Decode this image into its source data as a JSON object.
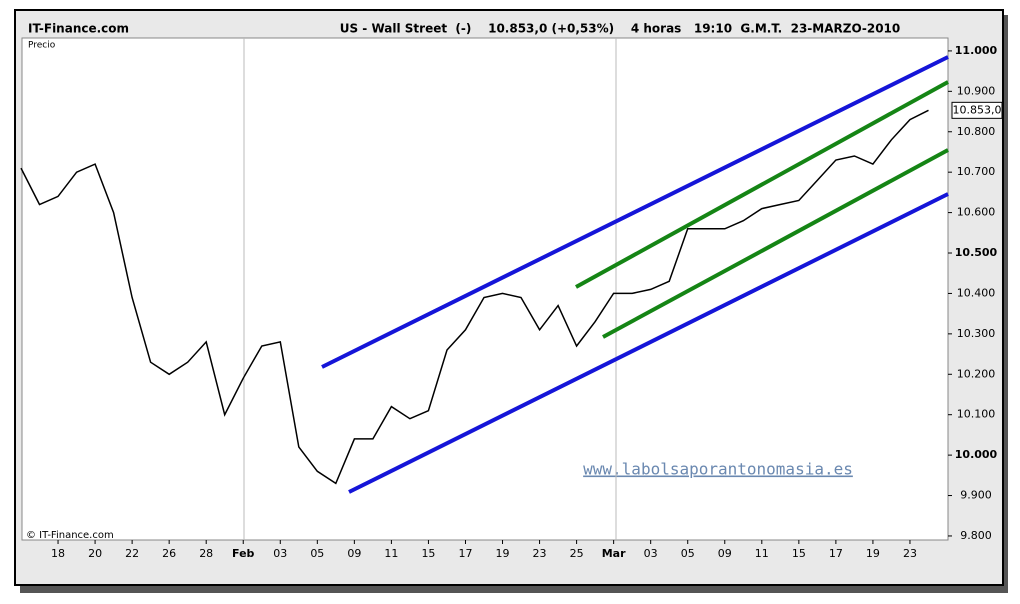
{
  "chart_data": {
    "type": "line",
    "site": "IT-Finance.com",
    "title": "US - Wall Street  (-)    10.853,0 (+0,53%)    4 horas   19:10  G.M.T.  23-MARZO-2010",
    "y_label": "Precio",
    "copyright": "© IT-Finance.com",
    "watermark": "www.labolsaporantonomasia.es",
    "last_price": {
      "value": 10853,
      "label": "10.853,0"
    },
    "categories": [
      null,
      null,
      "18",
      null,
      "20",
      null,
      "22",
      null,
      "26",
      null,
      "28",
      null,
      "Feb",
      null,
      "03",
      null,
      "05",
      null,
      "09",
      null,
      "11",
      null,
      "15",
      null,
      "17",
      null,
      "19",
      null,
      "23",
      null,
      "25",
      null,
      "Mar",
      null,
      "03",
      null,
      "05",
      null,
      "09",
      null,
      "11",
      null,
      "15",
      null,
      "17",
      null,
      "19",
      null,
      "23",
      null
    ],
    "values": [
      10710,
      10620,
      10640,
      10700,
      10720,
      10600,
      10390,
      10230,
      10200,
      10230,
      10280,
      10100,
      10190,
      10270,
      10280,
      10020,
      9960,
      9930,
      10040,
      10040,
      10120,
      10090,
      10110,
      10260,
      10310,
      10390,
      10400,
      10390,
      10310,
      10370,
      10270,
      10330,
      10400,
      10400,
      10410,
      10430,
      10560,
      10560,
      10560,
      10580,
      10610,
      10620,
      10630,
      10680,
      10730,
      10740,
      10720,
      10780,
      10830,
      10853
    ],
    "color": "#000000",
    "ylim": [
      9790,
      11027
    ],
    "yticks": [
      {
        "value": 9800,
        "label": "9.800"
      },
      {
        "value": 9900,
        "label": "9.900"
      },
      {
        "value": 10000,
        "label": "10.000"
      },
      {
        "value": 10100,
        "label": "10.100"
      },
      {
        "value": 10200,
        "label": "10.200"
      },
      {
        "value": 10300,
        "label": "10.300"
      },
      {
        "value": 10400,
        "label": "10.400"
      },
      {
        "value": 10500,
        "label": "10.500"
      },
      {
        "value": 10600,
        "label": "10.600"
      },
      {
        "value": 10700,
        "label": "10.700"
      },
      {
        "value": 10800,
        "label": "10.800"
      },
      {
        "value": 10900,
        "label": "10.900"
      },
      {
        "value": 11000,
        "label": "11.000"
      }
    ]
  }
}
